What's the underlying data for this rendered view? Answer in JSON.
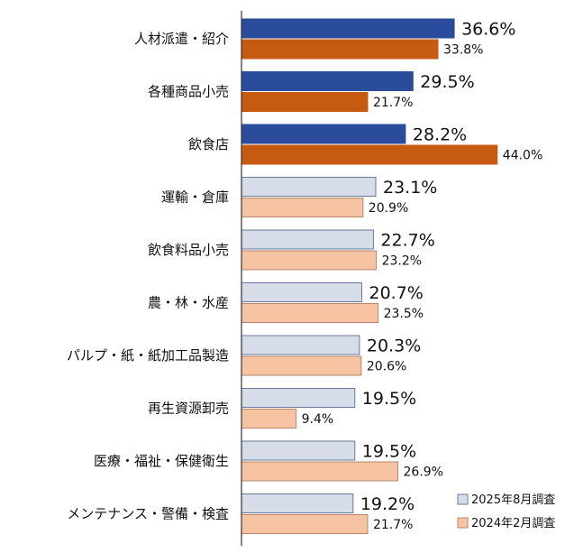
{
  "chart_data": {
    "type": "bar",
    "orientation": "horizontal",
    "categories": [
      "人材派遣・紹介",
      "各種商品小売",
      "飲食店",
      "運輸・倉庫",
      "飲食料品小売",
      "農・林・水産",
      "パルプ・紙・紙加工品製造",
      "再生資源卸売",
      "医療・福祉・保健衛生",
      "メンテナンス・警備・検査"
    ],
    "series": [
      {
        "name": "2025年8月調査",
        "values": [
          36.6,
          29.5,
          28.2,
          23.1,
          22.7,
          20.7,
          20.3,
          19.5,
          19.5,
          19.2
        ],
        "labels": [
          "36.6%",
          "29.5%",
          "28.2%",
          "23.1%",
          "22.7%",
          "20.7%",
          "20.3%",
          "19.5%",
          "19.5%",
          "19.2%"
        ]
      },
      {
        "name": "2024年2月調査",
        "values": [
          33.8,
          21.7,
          44.0,
          20.9,
          23.2,
          23.5,
          20.6,
          9.4,
          26.9,
          21.7
        ],
        "labels": [
          "33.8%",
          "21.7%",
          "44.0%",
          "20.9%",
          "23.2%",
          "23.5%",
          "20.6%",
          "9.4%",
          "26.9%",
          "21.7%"
        ]
      }
    ],
    "highlight_count": 3,
    "colors": {
      "highlight_2025": "#2b4b9b",
      "highlight_2024": "#c65a10",
      "other_2025": "#d6dde9",
      "other_2024": "#f6c4a2",
      "other_2025_border": "#6a7a99",
      "other_2024_border": "#b9846a",
      "axis": "#333333"
    },
    "legend": [
      {
        "label": "2025年8月調査",
        "color": "#d6dde9",
        "border": "#6a7a99"
      },
      {
        "label": "2024年2月調査",
        "color": "#f6c4a2",
        "border": "#b9846a"
      }
    ],
    "legend_position": "bottom-right",
    "xlim": [
      0,
      50
    ],
    "grid": false
  }
}
